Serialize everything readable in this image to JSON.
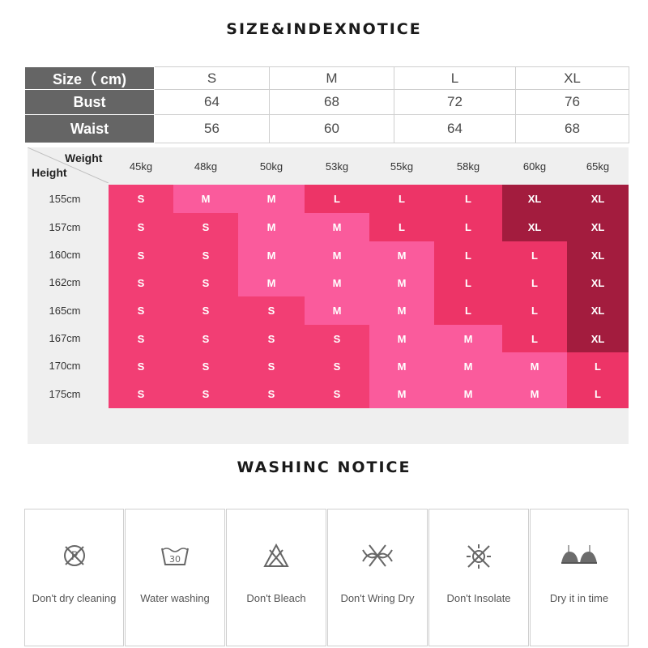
{
  "size_notice_title": "SIZE&INDEXNOTICE",
  "measurements": {
    "header": [
      "Size（ cm)",
      "S",
      "M",
      "L",
      "XL"
    ],
    "rows": [
      [
        "Bust",
        "64",
        "68",
        "72",
        "76"
      ],
      [
        "Waist",
        "56",
        "60",
        "64",
        "68"
      ]
    ]
  },
  "size_grid": {
    "weight_label": "Weight",
    "height_label": "Height",
    "weights": [
      "45kg",
      "48kg",
      "50kg",
      "53kg",
      "55kg",
      "58kg",
      "60kg",
      "65kg"
    ],
    "heights": [
      "155cm",
      "157cm",
      "160cm",
      "162cm",
      "165cm",
      "167cm",
      "170cm",
      "175cm"
    ],
    "sizes": [
      [
        "S",
        "M",
        "M",
        "L",
        "L",
        "L",
        "XL",
        "XL"
      ],
      [
        "S",
        "S",
        "M",
        "M",
        "L",
        "L",
        "XL",
        "XL"
      ],
      [
        "S",
        "S",
        "M",
        "M",
        "M",
        "L",
        "L",
        "XL"
      ],
      [
        "S",
        "S",
        "M",
        "M",
        "M",
        "L",
        "L",
        "XL"
      ],
      [
        "S",
        "S",
        "S",
        "M",
        "M",
        "L",
        "L",
        "XL"
      ],
      [
        "S",
        "S",
        "S",
        "S",
        "M",
        "M",
        "L",
        "XL"
      ],
      [
        "S",
        "S",
        "S",
        "S",
        "M",
        "M",
        "M",
        "L"
      ],
      [
        "S",
        "S",
        "S",
        "S",
        "M",
        "M",
        "M",
        "L"
      ]
    ],
    "colors": {
      "S": "#f23e74",
      "M": "#fa5b9c",
      "L": "#ed3467",
      "XL": "#a31c3e"
    }
  },
  "washing_notice_title": "WASHINC NOTICE",
  "washing_items": [
    {
      "label": "Don't  dry cleaning",
      "icon": "no-dry-clean-icon"
    },
    {
      "label": "Water washing",
      "icon": "wash-30-icon",
      "temperature": "30"
    },
    {
      "label": "Don't Bleach",
      "icon": "no-bleach-icon"
    },
    {
      "label": "Don't Wring Dry",
      "icon": "no-wring-icon"
    },
    {
      "label": "Don't Insolate",
      "icon": "no-sun-icon"
    },
    {
      "label": "Dry it in time",
      "icon": "bra-icon"
    }
  ]
}
